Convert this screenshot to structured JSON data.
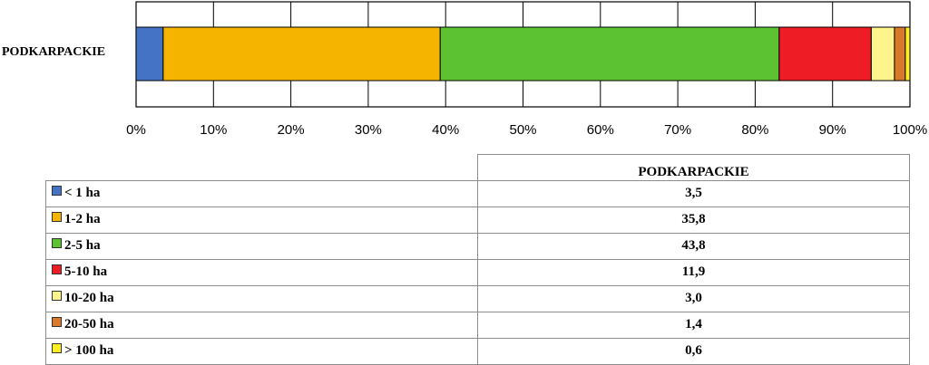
{
  "chart_data": {
    "type": "bar",
    "orientation": "horizontal",
    "stacked": "percent",
    "categories": [
      "PODKARPACKIE"
    ],
    "series": [
      {
        "name": "< 1 ha",
        "values": [
          3.5
        ],
        "color": "#4472c4"
      },
      {
        "name": "1-2 ha",
        "values": [
          35.8
        ],
        "color": "#f5b400"
      },
      {
        "name": "2-5 ha",
        "values": [
          43.8
        ],
        "color": "#5dc232"
      },
      {
        "name": "5-10 ha",
        "values": [
          11.9
        ],
        "color": "#ee1c24"
      },
      {
        "name": "10-20 ha",
        "values": [
          3.0
        ],
        "color": "#fdf48c"
      },
      {
        "name": "20-50 ha",
        "values": [
          1.4
        ],
        "color": "#d97a2b"
      },
      {
        "name": "> 100 ha",
        "values": [
          0.6
        ],
        "color": "#fdee21"
      }
    ],
    "xlim": [
      0,
      100
    ],
    "x_ticks": [
      "0%",
      "10%",
      "20%",
      "30%",
      "40%",
      "50%",
      "60%",
      "70%",
      "80%",
      "90%",
      "100%"
    ],
    "grid": true,
    "legend": "data table below chart"
  },
  "table": {
    "header": "PODKARPACKIE",
    "rows": [
      {
        "label": "< 1 ha",
        "value": "3,5"
      },
      {
        "label": "1-2 ha",
        "value": "35,8"
      },
      {
        "label": "2-5 ha",
        "value": "43,8"
      },
      {
        "label": "5-10 ha",
        "value": "11,9"
      },
      {
        "label": "10-20 ha",
        "value": "3,0"
      },
      {
        "label": "20-50 ha",
        "value": "1,4"
      },
      {
        "label": "> 100 ha",
        "value": "0,6"
      }
    ]
  }
}
